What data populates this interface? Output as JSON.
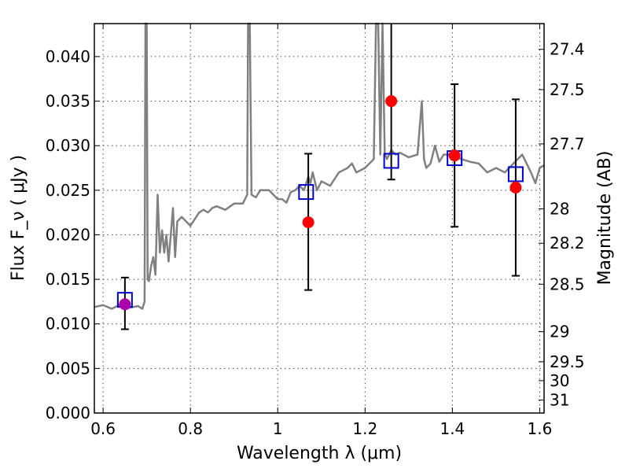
{
  "chart_data": {
    "type": "line",
    "xlabel": "Wavelength λ (μm)",
    "ylabel": "Flux F_ν ( μJy )",
    "ylabel_right": "Magnitude (AB)",
    "xlim": [
      0.58,
      1.61
    ],
    "ylim": [
      0.0,
      0.0437
    ],
    "x_ticks": [
      0.6,
      0.8,
      1.0,
      1.2,
      1.4,
      1.6
    ],
    "x_tick_labels": [
      "0.6",
      "0.8",
      "1",
      "1.2",
      "1.4",
      "1.6"
    ],
    "y_ticks": [
      0.0,
      0.005,
      0.01,
      0.015,
      0.02,
      0.025,
      0.03,
      0.035,
      0.04
    ],
    "y_tick_labels": [
      "0.000",
      "0.005",
      "0.010",
      "0.015",
      "0.020",
      "0.025",
      "0.030",
      "0.035",
      "0.040"
    ],
    "right_ticks": [
      {
        "label": "27.4",
        "flux": 0.04081
      },
      {
        "label": "27.5",
        "flux": 0.03629
      },
      {
        "label": "27.7",
        "flux": 0.0302
      },
      {
        "label": "28",
        "flux": 0.02291
      },
      {
        "label": "28.2",
        "flux": 0.01905
      },
      {
        "label": "28.5",
        "flux": 0.01445
      },
      {
        "label": "29",
        "flux": 0.00912
      },
      {
        "label": "29.5",
        "flux": 0.00575
      },
      {
        "label": "30",
        "flux": 0.00363
      },
      {
        "label": "31",
        "flux": 0.00145
      }
    ],
    "grid": true,
    "series": [
      {
        "color": "#808080",
        "x": [
          0.58,
          0.6,
          0.62,
          0.64,
          0.66,
          0.68,
          0.69,
          0.695,
          0.697,
          0.7,
          0.702,
          0.705,
          0.71,
          0.715,
          0.72,
          0.725,
          0.73,
          0.735,
          0.74,
          0.745,
          0.75,
          0.76,
          0.765,
          0.77,
          0.78,
          0.8,
          0.82,
          0.83,
          0.84,
          0.85,
          0.86,
          0.88,
          0.9,
          0.92,
          0.93,
          0.932,
          0.936,
          0.94,
          0.95,
          0.96,
          0.98,
          1.0,
          1.01,
          1.02,
          1.03,
          1.04,
          1.05,
          1.06,
          1.07,
          1.075,
          1.08,
          1.09,
          1.1,
          1.12,
          1.14,
          1.16,
          1.17,
          1.18,
          1.2,
          1.22,
          1.225,
          1.23,
          1.235,
          1.24,
          1.245,
          1.25,
          1.255,
          1.26,
          1.27,
          1.28,
          1.3,
          1.32,
          1.33,
          1.335,
          1.34,
          1.35,
          1.36,
          1.37,
          1.38,
          1.4,
          1.42,
          1.44,
          1.46,
          1.48,
          1.5,
          1.52,
          1.54,
          1.56,
          1.58,
          1.59,
          1.6,
          1.61
        ],
        "y": [
          0.0119,
          0.0121,
          0.0117,
          0.0122,
          0.0118,
          0.012,
          0.0117,
          0.0125,
          0.0437,
          0.0437,
          0.015,
          0.0148,
          0.0165,
          0.0175,
          0.0155,
          0.0245,
          0.018,
          0.0205,
          0.018,
          0.02,
          0.017,
          0.023,
          0.0175,
          0.0215,
          0.022,
          0.021,
          0.0225,
          0.0228,
          0.0225,
          0.023,
          0.0232,
          0.0228,
          0.0235,
          0.0235,
          0.0245,
          0.0437,
          0.0437,
          0.0245,
          0.0242,
          0.025,
          0.025,
          0.024,
          0.024,
          0.0236,
          0.0248,
          0.025,
          0.0255,
          0.025,
          0.0265,
          0.0258,
          0.027,
          0.025,
          0.026,
          0.0255,
          0.027,
          0.0275,
          0.028,
          0.027,
          0.0275,
          0.0285,
          0.0437,
          0.0437,
          0.029,
          0.0437,
          0.0292,
          0.0285,
          0.029,
          0.0295,
          0.029,
          0.0292,
          0.0287,
          0.029,
          0.035,
          0.0285,
          0.0275,
          0.028,
          0.03,
          0.0282,
          0.029,
          0.029,
          0.0285,
          0.0282,
          0.028,
          0.027,
          0.0275,
          0.027,
          0.028,
          0.029,
          0.027,
          0.0258,
          0.0275,
          0.0278
        ]
      }
    ],
    "model_points": {
      "marker": "open-square",
      "color": "#0000cc",
      "x": [
        0.65,
        1.065,
        1.26,
        1.405,
        1.545
      ],
      "y": [
        0.0127,
        0.0248,
        0.0283,
        0.0286,
        0.0268
      ]
    },
    "observed_points": {
      "marker": "filled-circle",
      "color": "#ff0000",
      "x": [
        0.65,
        1.07,
        1.26,
        1.405,
        1.545
      ],
      "y": [
        0.0122,
        0.0214,
        0.035,
        0.0289,
        0.0253
      ],
      "yerr_low": [
        0.0094,
        0.0138,
        0.0262,
        0.0209,
        0.0154
      ],
      "yerr_high": [
        0.0152,
        0.0291,
        0.0437,
        0.0369,
        0.0352
      ]
    },
    "overlap_color": "#aa00aa"
  }
}
